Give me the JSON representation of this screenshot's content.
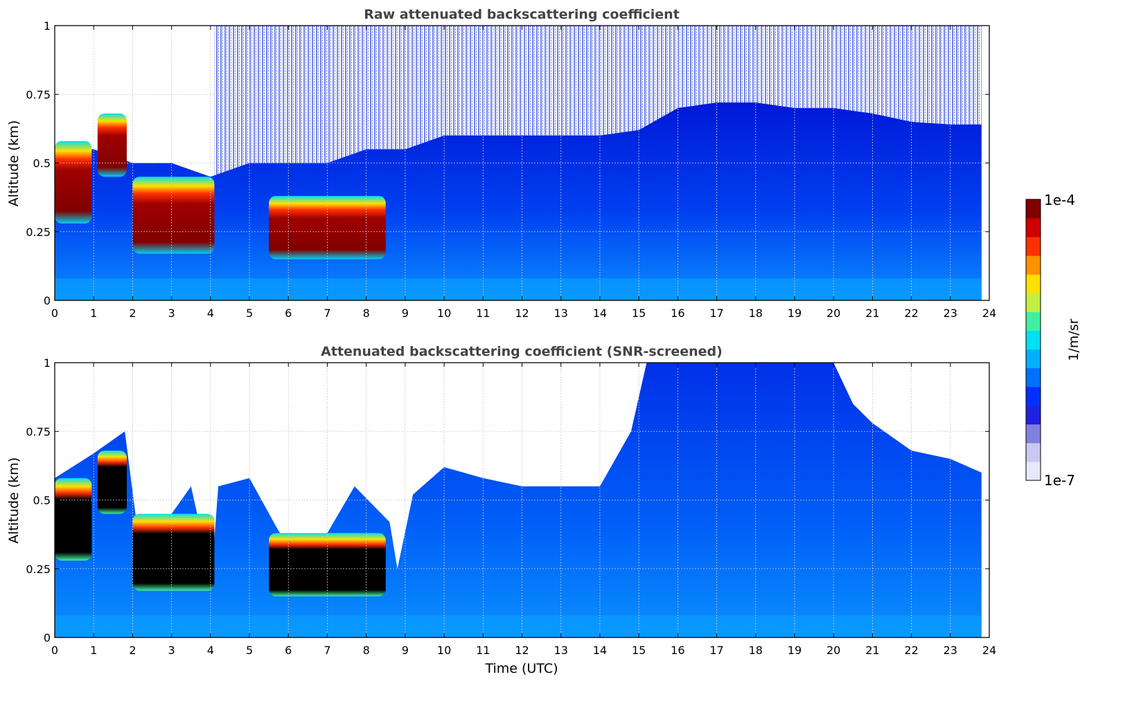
{
  "chart_data": [
    {
      "type": "heatmap",
      "title": "Raw attenuated backscattering coefficient",
      "ylabel": "Altitude (km)",
      "xlabel": "",
      "xlim": [
        0,
        24
      ],
      "ylim": [
        0,
        1
      ],
      "x_ticks": [
        "0",
        "1",
        "2",
        "3",
        "4",
        "5",
        "6",
        "7",
        "8",
        "9",
        "10",
        "11",
        "12",
        "13",
        "14",
        "15",
        "16",
        "17",
        "18",
        "19",
        "20",
        "21",
        "22",
        "23",
        "24"
      ],
      "y_ticks": [
        "0",
        "0.25",
        "0.5",
        "0.75",
        "1"
      ],
      "grid": true,
      "data_end_hour": 23.8,
      "dense_layer_top_km": [
        [
          0,
          0.55
        ],
        [
          1,
          0.55
        ],
        [
          2,
          0.5
        ],
        [
          3,
          0.5
        ],
        [
          4,
          0.45
        ],
        [
          5,
          0.5
        ],
        [
          6,
          0.5
        ],
        [
          7,
          0.5
        ],
        [
          8,
          0.55
        ],
        [
          9,
          0.55
        ],
        [
          10,
          0.6
        ],
        [
          11,
          0.6
        ],
        [
          12,
          0.6
        ],
        [
          13,
          0.6
        ],
        [
          14,
          0.6
        ],
        [
          15,
          0.62
        ],
        [
          16,
          0.7
        ],
        [
          17,
          0.72
        ],
        [
          18,
          0.72
        ],
        [
          19,
          0.7
        ],
        [
          20,
          0.7
        ],
        [
          21,
          0.68
        ],
        [
          22,
          0.65
        ],
        [
          23,
          0.64
        ]
      ],
      "strong_layers": [
        {
          "start": 0.0,
          "end": 0.95,
          "bottom_km": 0.28,
          "top_km": 0.58,
          "level": "1e-4"
        },
        {
          "start": 1.1,
          "end": 1.85,
          "bottom_km": 0.45,
          "top_km": 0.68,
          "level": "1e-4"
        },
        {
          "start": 2.0,
          "end": 4.1,
          "bottom_km": 0.17,
          "top_km": 0.45,
          "level": "1e-4"
        },
        {
          "start": 5.5,
          "end": 8.5,
          "bottom_km": 0.15,
          "top_km": 0.38,
          "level": "1e-4"
        }
      ]
    },
    {
      "type": "heatmap",
      "title": "Attenuated backscattering coefficient (SNR-screened)",
      "ylabel": "Altitude (km)",
      "xlabel": "Time (UTC)",
      "xlim": [
        0,
        24
      ],
      "ylim": [
        0,
        1
      ],
      "x_ticks": [
        "0",
        "1",
        "2",
        "3",
        "4",
        "5",
        "6",
        "7",
        "8",
        "9",
        "10",
        "11",
        "12",
        "13",
        "14",
        "15",
        "16",
        "17",
        "18",
        "19",
        "20",
        "21",
        "22",
        "23",
        "24"
      ],
      "y_ticks": [
        "0",
        "0.25",
        "0.5",
        "0.75",
        "1"
      ],
      "grid": true,
      "data_end_hour": 23.8,
      "signal_top_km": [
        [
          0,
          0.58
        ],
        [
          1,
          0.67
        ],
        [
          1.8,
          0.75
        ],
        [
          2.1,
          0.42
        ],
        [
          3,
          0.45
        ],
        [
          3.5,
          0.55
        ],
        [
          3.8,
          0.36
        ],
        [
          4.1,
          0.36
        ],
        [
          4.2,
          0.55
        ],
        [
          5,
          0.58
        ],
        [
          5.7,
          0.4
        ],
        [
          6,
          0.33
        ],
        [
          7,
          0.38
        ],
        [
          7.7,
          0.55
        ],
        [
          8.6,
          0.42
        ],
        [
          8.8,
          0.25
        ],
        [
          9.2,
          0.52
        ],
        [
          10,
          0.62
        ],
        [
          11,
          0.58
        ],
        [
          12,
          0.55
        ],
        [
          13,
          0.55
        ],
        [
          14,
          0.55
        ],
        [
          14.8,
          0.75
        ],
        [
          15.2,
          1.0
        ],
        [
          20,
          1.0
        ],
        [
          20.5,
          0.85
        ],
        [
          21,
          0.78
        ],
        [
          22,
          0.68
        ],
        [
          23,
          0.65
        ],
        [
          23.8,
          0.6
        ]
      ],
      "strong_layers": [
        {
          "start": 0.0,
          "end": 0.95,
          "bottom_km": 0.28,
          "top_km": 0.58,
          "level": "saturated"
        },
        {
          "start": 1.1,
          "end": 1.85,
          "bottom_km": 0.45,
          "top_km": 0.68,
          "level": "saturated"
        },
        {
          "start": 2.0,
          "end": 4.1,
          "bottom_km": 0.17,
          "top_km": 0.45,
          "level": "saturated"
        },
        {
          "start": 5.5,
          "end": 8.5,
          "bottom_km": 0.15,
          "top_km": 0.38,
          "level": "saturated"
        }
      ]
    }
  ],
  "colorbar": {
    "max_label": "1e-4",
    "min_label": "1e-7",
    "unit_label": "1/m/sr",
    "colors": [
      "#e8e8f8",
      "#c8c8f0",
      "#8080e0",
      "#2020e0",
      "#0030ff",
      "#0070ff",
      "#00b0ff",
      "#00e0f0",
      "#40f0a0",
      "#c0f040",
      "#ffe000",
      "#ff9000",
      "#ff3000",
      "#d00000",
      "#800000"
    ]
  },
  "colors": {
    "background_low": "#0a7bff",
    "noise_blue": "#0018d8",
    "saturated_black": "#000000",
    "title_gray": "#444444"
  }
}
